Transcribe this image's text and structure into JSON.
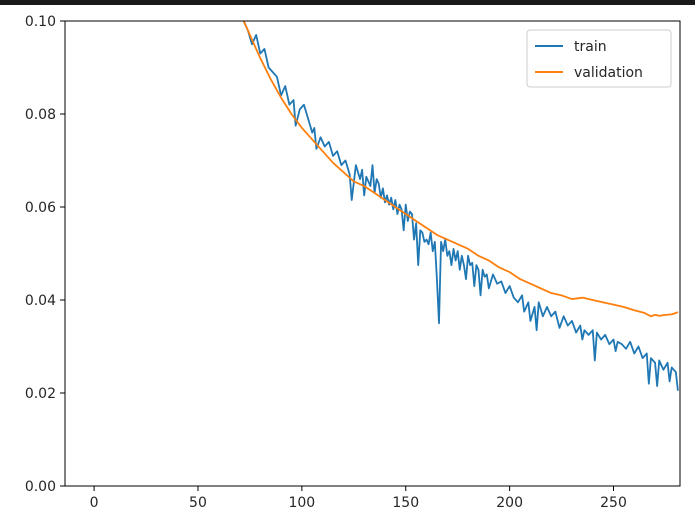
{
  "chart_data": {
    "type": "line",
    "title": "",
    "xlabel": "",
    "ylabel": "",
    "xlim": [
      -14,
      282
    ],
    "ylim": [
      0,
      0.1
    ],
    "x_ticks": [
      0,
      50,
      100,
      150,
      200,
      250
    ],
    "x_tick_labels": [
      "0",
      "50",
      "100",
      "150",
      "200",
      "250"
    ],
    "y_ticks": [
      0.0,
      0.02,
      0.04,
      0.06,
      0.08,
      0.1
    ],
    "y_tick_labels": [
      "0.00",
      "0.02",
      "0.04",
      "0.06",
      "0.08",
      "0.10"
    ],
    "grid": false,
    "legend_position": "top-right",
    "series": [
      {
        "name": "train",
        "color": "#1f77b4",
        "points": [
          [
            72,
            0.1
          ],
          [
            74,
            0.098
          ],
          [
            76,
            0.095
          ],
          [
            78,
            0.097
          ],
          [
            80,
            0.093
          ],
          [
            82,
            0.094
          ],
          [
            84,
            0.09
          ],
          [
            86,
            0.089
          ],
          [
            88,
            0.088
          ],
          [
            90,
            0.084
          ],
          [
            92,
            0.086
          ],
          [
            94,
            0.082
          ],
          [
            96,
            0.083
          ],
          [
            97,
            0.0775
          ],
          [
            99,
            0.081
          ],
          [
            101,
            0.082
          ],
          [
            103,
            0.079
          ],
          [
            105,
            0.076
          ],
          [
            106,
            0.077
          ],
          [
            107,
            0.0725
          ],
          [
            109,
            0.075
          ],
          [
            111,
            0.073
          ],
          [
            113,
            0.074
          ],
          [
            115,
            0.071
          ],
          [
            117,
            0.072
          ],
          [
            119,
            0.069
          ],
          [
            121,
            0.07
          ],
          [
            123,
            0.067
          ],
          [
            124,
            0.0615
          ],
          [
            126,
            0.069
          ],
          [
            128,
            0.066
          ],
          [
            129,
            0.068
          ],
          [
            130,
            0.0625
          ],
          [
            131,
            0.0665
          ],
          [
            133,
            0.0645
          ],
          [
            134,
            0.069
          ],
          [
            135,
            0.063
          ],
          [
            136,
            0.066
          ],
          [
            137,
            0.065
          ],
          [
            138,
            0.062
          ],
          [
            139,
            0.064
          ],
          [
            140,
            0.061
          ],
          [
            141,
            0.0625
          ],
          [
            142,
            0.0605
          ],
          [
            143,
            0.062
          ],
          [
            144,
            0.0595
          ],
          [
            145,
            0.0615
          ],
          [
            146,
            0.0585
          ],
          [
            147,
            0.0605
          ],
          [
            148,
            0.0595
          ],
          [
            149,
            0.055
          ],
          [
            150,
            0.0605
          ],
          [
            151,
            0.057
          ],
          [
            152,
            0.059
          ],
          [
            153,
            0.0585
          ],
          [
            154,
            0.053
          ],
          [
            155,
            0.0565
          ],
          [
            156,
            0.0475
          ],
          [
            157,
            0.055
          ],
          [
            158,
            0.0545
          ],
          [
            159,
            0.0525
          ],
          [
            160,
            0.053
          ],
          [
            161,
            0.052
          ],
          [
            162,
            0.0545
          ],
          [
            163,
            0.0505
          ],
          [
            164,
            0.0525
          ],
          [
            165,
            0.0445
          ],
          [
            166,
            0.035
          ],
          [
            167,
            0.0525
          ],
          [
            168,
            0.0505
          ],
          [
            169,
            0.053
          ],
          [
            170,
            0.0495
          ],
          [
            171,
            0.0505
          ],
          [
            172,
            0.0475
          ],
          [
            173,
            0.051
          ],
          [
            174,
            0.0485
          ],
          [
            175,
            0.0505
          ],
          [
            176,
            0.0465
          ],
          [
            177,
            0.0495
          ],
          [
            178,
            0.0475
          ],
          [
            179,
            0.0445
          ],
          [
            180,
            0.0495
          ],
          [
            181,
            0.0475
          ],
          [
            182,
            0.048
          ],
          [
            183,
            0.043
          ],
          [
            184,
            0.0475
          ],
          [
            185,
            0.0465
          ],
          [
            186,
            0.041
          ],
          [
            187,
            0.0465
          ],
          [
            188,
            0.045
          ],
          [
            189,
            0.0455
          ],
          [
            190,
            0.0425
          ],
          [
            192,
            0.0455
          ],
          [
            194,
            0.0435
          ],
          [
            196,
            0.044
          ],
          [
            198,
            0.0415
          ],
          [
            200,
            0.043
          ],
          [
            202,
            0.0405
          ],
          [
            204,
            0.0395
          ],
          [
            206,
            0.041
          ],
          [
            207,
            0.0375
          ],
          [
            209,
            0.0395
          ],
          [
            210,
            0.0355
          ],
          [
            212,
            0.0385
          ],
          [
            213,
            0.0335
          ],
          [
            214,
            0.0395
          ],
          [
            216,
            0.0365
          ],
          [
            218,
            0.0385
          ],
          [
            220,
            0.0365
          ],
          [
            222,
            0.0375
          ],
          [
            224,
            0.034
          ],
          [
            226,
            0.0365
          ],
          [
            228,
            0.0345
          ],
          [
            230,
            0.0355
          ],
          [
            232,
            0.033
          ],
          [
            234,
            0.0345
          ],
          [
            235,
            0.0315
          ],
          [
            236,
            0.0335
          ],
          [
            238,
            0.0325
          ],
          [
            240,
            0.0335
          ],
          [
            241,
            0.027
          ],
          [
            242,
            0.033
          ],
          [
            244,
            0.0315
          ],
          [
            246,
            0.0325
          ],
          [
            248,
            0.0305
          ],
          [
            250,
            0.0315
          ],
          [
            251,
            0.029
          ],
          [
            252,
            0.031
          ],
          [
            254,
            0.0305
          ],
          [
            256,
            0.0295
          ],
          [
            258,
            0.031
          ],
          [
            260,
            0.0285
          ],
          [
            262,
            0.03
          ],
          [
            264,
            0.0275
          ],
          [
            266,
            0.0285
          ],
          [
            267,
            0.022
          ],
          [
            268,
            0.0275
          ],
          [
            270,
            0.0265
          ],
          [
            271,
            0.0215
          ],
          [
            272,
            0.027
          ],
          [
            274,
            0.025
          ],
          [
            276,
            0.0265
          ],
          [
            277,
            0.0225
          ],
          [
            278,
            0.0255
          ],
          [
            280,
            0.0245
          ],
          [
            281,
            0.0205
          ]
        ]
      },
      {
        "name": "validation",
        "color": "#ff7f0e",
        "points": [
          [
            72,
            0.1
          ],
          [
            75,
            0.097
          ],
          [
            80,
            0.092
          ],
          [
            85,
            0.0875
          ],
          [
            90,
            0.0835
          ],
          [
            95,
            0.08
          ],
          [
            100,
            0.077
          ],
          [
            105,
            0.0745
          ],
          [
            110,
            0.072
          ],
          [
            115,
            0.0695
          ],
          [
            120,
            0.0675
          ],
          [
            125,
            0.0655
          ],
          [
            130,
            0.0645
          ],
          [
            135,
            0.063
          ],
          [
            140,
            0.0615
          ],
          [
            145,
            0.06
          ],
          [
            150,
            0.0585
          ],
          [
            155,
            0.057
          ],
          [
            160,
            0.0555
          ],
          [
            165,
            0.054
          ],
          [
            170,
            0.053
          ],
          [
            175,
            0.052
          ],
          [
            180,
            0.051
          ],
          [
            185,
            0.0495
          ],
          [
            190,
            0.0485
          ],
          [
            195,
            0.047
          ],
          [
            200,
            0.046
          ],
          [
            205,
            0.0445
          ],
          [
            210,
            0.0435
          ],
          [
            215,
            0.0425
          ],
          [
            220,
            0.0415
          ],
          [
            225,
            0.041
          ],
          [
            230,
            0.0402
          ],
          [
            235,
            0.0405
          ],
          [
            240,
            0.04
          ],
          [
            245,
            0.0395
          ],
          [
            250,
            0.039
          ],
          [
            255,
            0.0385
          ],
          [
            260,
            0.0378
          ],
          [
            265,
            0.0372
          ],
          [
            268,
            0.0365
          ],
          [
            270,
            0.0368
          ],
          [
            272,
            0.0366
          ],
          [
            275,
            0.0368
          ],
          [
            278,
            0.0369
          ],
          [
            280,
            0.0372
          ],
          [
            281,
            0.0374
          ]
        ]
      }
    ]
  }
}
